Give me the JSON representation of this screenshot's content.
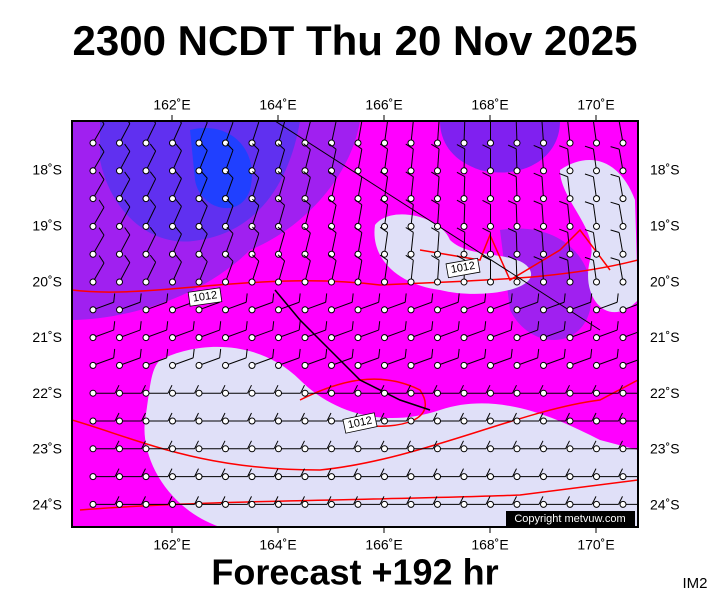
{
  "header": {
    "title": "2300 NCDT Thu 20 Nov 2025"
  },
  "map": {
    "longitude_labels": [
      "162˚E",
      "164˚E",
      "166˚E",
      "168˚E",
      "170˚E"
    ],
    "latitude_labels": [
      "18˚S",
      "19˚S",
      "20˚S",
      "21˚S",
      "22˚S",
      "23˚S",
      "24˚S"
    ],
    "isobar_labels": [
      "1012",
      "1012",
      "1012"
    ],
    "copyright": "Copyright metvuw.com"
  },
  "footer": {
    "forecast": "Forecast +192 hr",
    "code": "IM2"
  }
}
